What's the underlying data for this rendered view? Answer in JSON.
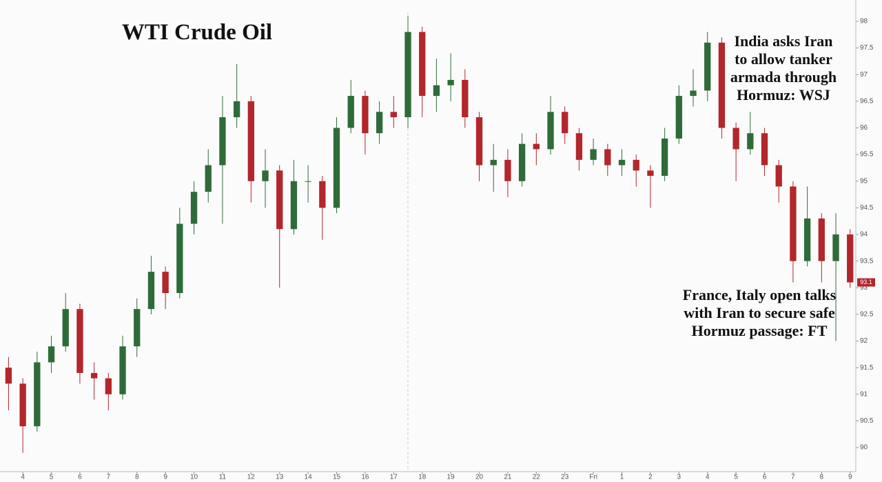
{
  "chart_data": {
    "type": "candlestick",
    "title": "WTI Crude Oil",
    "annotations": [
      [
        "India asks Iran",
        "to allow tanker",
        "armada through",
        "Hormuz: WSJ"
      ],
      [
        "France, Italy open talks",
        "with Iran to secure safe",
        "Hormuz passage: FT"
      ]
    ],
    "last_price_label": 93.1,
    "up_color": "#2f6b3a",
    "down_color": "#b3262b",
    "x": [
      3.5,
      4,
      4.5,
      5,
      5.5,
      6,
      6.5,
      7,
      7.5,
      8,
      8.5,
      9,
      9.5,
      10,
      10.5,
      11,
      11.5,
      12,
      12.5,
      13,
      13.5,
      14,
      14.5,
      15,
      15.5,
      16,
      16.5,
      17,
      17.5,
      18,
      18.5,
      19,
      19.5,
      20,
      20.5,
      21,
      21.5,
      22,
      22.5,
      23,
      23.5,
      24,
      24.5,
      25,
      25.5,
      26,
      26.5,
      27,
      27.5,
      28,
      28.5,
      29,
      29.5,
      30,
      30.5,
      31,
      31.5,
      32,
      32.5,
      33
    ],
    "open": [
      91.5,
      91.2,
      90.4,
      91.6,
      91.9,
      92.6,
      91.4,
      91.3,
      91.0,
      91.9,
      92.6,
      93.3,
      92.9,
      94.2,
      94.8,
      95.3,
      96.2,
      96.5,
      95.0,
      95.2,
      94.1,
      95.0,
      95.0,
      94.5,
      96.0,
      96.6,
      95.9,
      96.3,
      96.2,
      97.8,
      96.6,
      96.8,
      96.9,
      96.2,
      95.3,
      95.4,
      95.0,
      95.7,
      95.6,
      96.3,
      95.9,
      95.4,
      95.6,
      95.3,
      95.4,
      95.2,
      95.1,
      95.8,
      96.6,
      96.7,
      97.6,
      96.0,
      95.6,
      95.9,
      95.3,
      94.9,
      93.5,
      94.3,
      93.5,
      94.0
    ],
    "high": [
      91.7,
      91.3,
      91.8,
      92.1,
      92.9,
      92.7,
      91.6,
      91.4,
      92.1,
      92.8,
      93.6,
      93.4,
      94.5,
      95.0,
      95.6,
      96.6,
      97.2,
      96.6,
      95.6,
      95.3,
      95.4,
      95.3,
      95.1,
      96.2,
      96.9,
      96.7,
      96.5,
      96.6,
      98.1,
      97.9,
      97.3,
      97.4,
      97.1,
      96.3,
      95.7,
      95.6,
      95.9,
      95.9,
      96.6,
      96.4,
      96.0,
      95.8,
      95.7,
      95.6,
      95.5,
      95.3,
      96.0,
      96.8,
      97.1,
      97.8,
      97.7,
      96.1,
      96.3,
      96.0,
      95.4,
      95.0,
      94.9,
      94.4,
      94.4,
      94.1
    ],
    "low": [
      90.7,
      89.9,
      90.3,
      91.4,
      91.8,
      91.2,
      90.9,
      90.7,
      90.9,
      91.7,
      92.5,
      92.6,
      92.8,
      94.0,
      94.6,
      94.2,
      96.0,
      94.6,
      94.5,
      93.0,
      94.0,
      94.6,
      93.9,
      94.4,
      95.9,
      95.5,
      95.7,
      96.0,
      96.0,
      96.2,
      96.3,
      96.5,
      96.0,
      95.0,
      94.8,
      94.7,
      94.9,
      95.3,
      95.5,
      95.7,
      95.2,
      95.3,
      95.1,
      95.1,
      94.9,
      94.5,
      95.0,
      95.7,
      96.4,
      96.5,
      95.8,
      95.0,
      95.5,
      95.1,
      94.6,
      93.1,
      93.4,
      93.1,
      92.0,
      93.0
    ],
    "close": [
      91.2,
      90.4,
      91.6,
      91.9,
      92.6,
      91.4,
      91.3,
      91.0,
      91.9,
      92.6,
      93.3,
      92.9,
      94.2,
      94.8,
      95.3,
      96.2,
      96.5,
      95.0,
      95.2,
      94.1,
      95.0,
      95.0,
      94.5,
      96.0,
      96.6,
      95.9,
      96.3,
      96.2,
      97.8,
      96.6,
      96.8,
      96.9,
      96.2,
      95.3,
      95.4,
      95.0,
      95.7,
      95.6,
      96.3,
      95.9,
      95.4,
      95.6,
      95.3,
      95.4,
      95.2,
      95.1,
      95.8,
      96.6,
      96.7,
      97.6,
      96.0,
      95.6,
      95.9,
      95.3,
      94.9,
      93.5,
      94.3,
      93.5,
      94.0,
      93.1
    ],
    "xlim": [
      3.2,
      33.2
    ],
    "xticks": [
      4,
      5,
      6,
      7,
      8,
      9,
      10,
      11,
      12,
      13,
      14,
      15,
      16,
      17,
      18,
      19,
      20,
      21,
      22,
      23,
      {
        "value": 24,
        "label": "Fri"
      },
      {
        "value": 25,
        "label": "1"
      },
      {
        "value": 26,
        "label": "2"
      },
      {
        "value": 27,
        "label": "3"
      },
      {
        "value": 28,
        "label": "4"
      },
      {
        "value": 29,
        "label": "5"
      },
      {
        "value": 30,
        "label": "6"
      },
      {
        "value": 31,
        "label": "7"
      },
      {
        "value": 32,
        "label": "8"
      },
      {
        "value": 33,
        "label": "9"
      }
    ],
    "ylim": [
      89.6,
      98.4
    ],
    "yticks": [
      90,
      90.5,
      91,
      91.5,
      92,
      92.5,
      93,
      93.5,
      94,
      94.5,
      95,
      95.5,
      96,
      96.5,
      97,
      97.5,
      98
    ]
  }
}
